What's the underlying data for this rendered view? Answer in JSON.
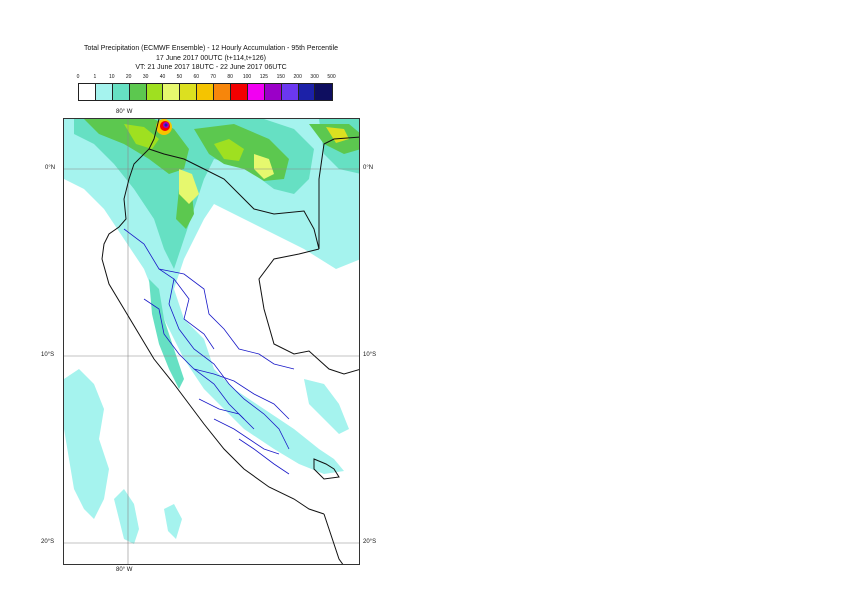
{
  "title": {
    "line1": "Total Precipitation (ECMWF Ensemble) - 12 Hourly Accumulation - 95th Percentile",
    "line2": "17 June 2017 00UTC (t+114,t+126)",
    "line3": "VT: 21 June 2017 18UTC - 22 June 2017 06UTC"
  },
  "legend": {
    "thresholds": [
      "0",
      "1",
      "10",
      "20",
      "30",
      "40",
      "50",
      "60",
      "70",
      "80",
      "100",
      "125",
      "150",
      "200",
      "300",
      "500"
    ],
    "colors": [
      "#ffffff",
      "#a5f3ee",
      "#66e0c3",
      "#5cc84f",
      "#9fe020",
      "#e6f86e",
      "#dce020",
      "#f5c400",
      "#f7860b",
      "#f30000",
      "#f200f2",
      "#9b00c8",
      "#6b38f0",
      "#1c21a8",
      "#0e0e60"
    ]
  },
  "map": {
    "background": "#ffffff",
    "lon_labels_top": [
      "80° W"
    ],
    "lon_labels_bottom": [
      "80° W"
    ],
    "lat_labels_left": [
      "0°N",
      "10°S",
      "20°S"
    ],
    "lat_labels_right": [
      "0°N",
      "10°S",
      "20°S"
    ]
  }
}
